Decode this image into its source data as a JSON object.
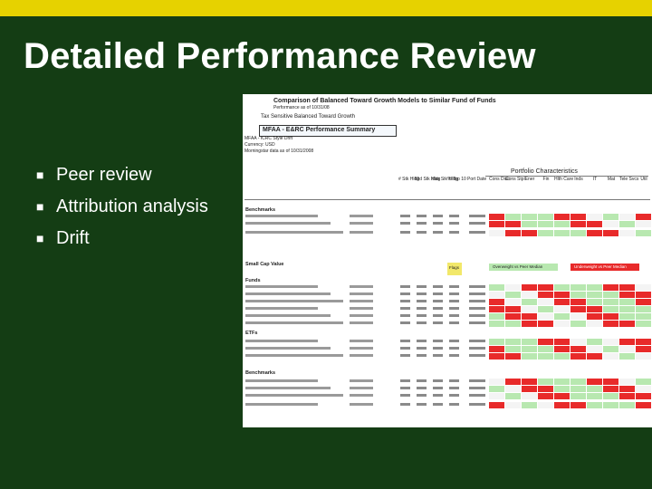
{
  "slide": {
    "title": "Detailed Performance Review",
    "bullets": [
      {
        "text": "Peer review"
      },
      {
        "text": "Attribution analysis"
      },
      {
        "text": "Drift"
      }
    ],
    "colors": {
      "background": "#143d14",
      "top_bar": "#e6d200",
      "text": "#ffffff"
    }
  },
  "spreadsheet": {
    "header1": "Comparison of Balanced Toward Growth Models to Similar Fund of Funds",
    "header2": "Performance as of 10/31/08",
    "header3": "Tax Sensitive Balanced Toward Growth",
    "summary_title": "MFAA - E&RC Performance Summary",
    "meta_lines": [
      "MFAA - ICRC Style Drift",
      "Currency: USD",
      "Morningstar data as of 10/31/2008"
    ],
    "portfolio_characteristics": "Portfolio Characteristics",
    "column_headers": [
      "# Stk Hldg",
      "Mid Stk Hldg",
      "Max Stk Hldg",
      "% Top 10",
      "Port Date",
      "Cons Disc",
      "Cons Stpl",
      "Ener",
      "Fin",
      "Hlth Care",
      "Inds",
      "IT",
      "Mat",
      "Tele Svcs",
      "Util"
    ],
    "sections": [
      "Benchmarks",
      "Small Cap Value",
      "Funds",
      "ETFs",
      "Benchmarks"
    ],
    "highlights": {
      "yellow": "Flags",
      "green": "Overweight vs Peer Median",
      "red": "Underweight vs Peer Median"
    }
  }
}
